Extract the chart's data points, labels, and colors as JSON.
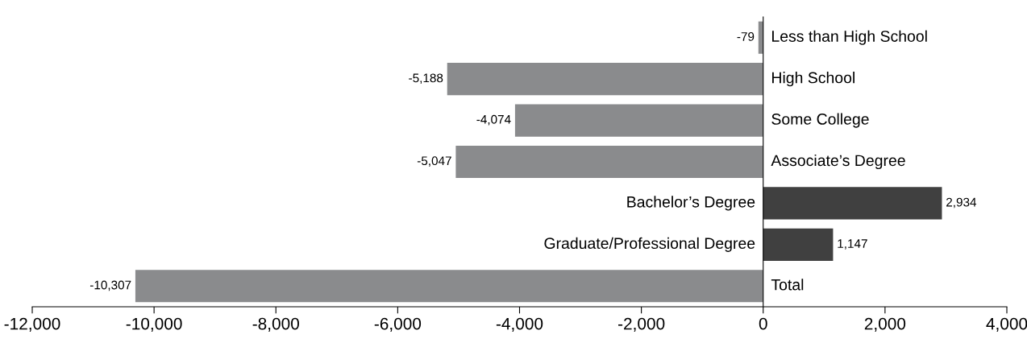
{
  "chart_data": {
    "type": "bar",
    "orientation": "horizontal",
    "categories": [
      "Less than High School",
      "High School",
      "Some College",
      "Associate’s Degree",
      "Bachelor’s Degree",
      "Graduate/Professional Degree",
      "Total"
    ],
    "values": [
      -79,
      -5188,
      -4074,
      -5047,
      2934,
      1147,
      -10307
    ],
    "colors": [
      "#8a8b8d",
      "#8a8b8d",
      "#8a8b8d",
      "#8a8b8d",
      "#404040",
      "#404040",
      "#8a8b8d"
    ],
    "value_labels": [
      "-79",
      "-5,188",
      "-4,074",
      "-5,047",
      "2,934",
      "1,147",
      "-10,307"
    ],
    "xlim": [
      -12000,
      4000
    ],
    "xticks": [
      {
        "value": -12000,
        "label": "-12,000"
      },
      {
        "value": -10000,
        "label": "-10,000"
      },
      {
        "value": -8000,
        "label": "-8,000"
      },
      {
        "value": -6000,
        "label": "-6,000"
      },
      {
        "value": -4000,
        "label": "-4,000"
      },
      {
        "value": -2000,
        "label": "-2,000"
      },
      0,
      {
        "value": 2000,
        "label": "2,000"
      },
      {
        "value": 4000,
        "label": "4,000"
      }
    ],
    "grid": false,
    "legend": false
  }
}
